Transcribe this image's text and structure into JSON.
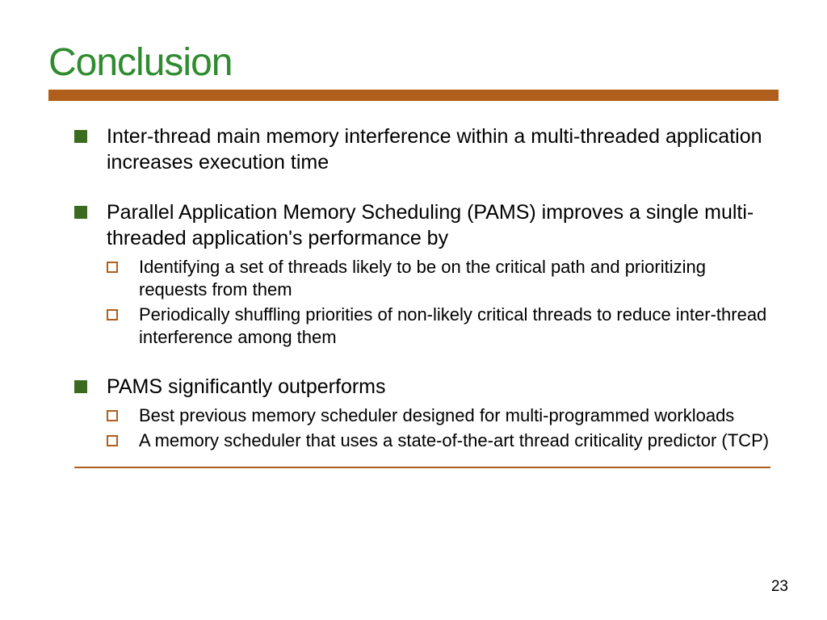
{
  "colors": {
    "title": "#2e8b2e",
    "rule": "#b05e1b",
    "bullet_fill": "#3a6b1f",
    "sub_bullet_border": "#b05e1b",
    "text": "#000000"
  },
  "title": "Conclusion",
  "bullets": {
    "b1": "Inter-thread main memory interference within a multi-threaded application increases execution time",
    "b2": "Parallel Application Memory Scheduling (PAMS) improves a single multi-threaded application's performance by",
    "b2_subs": {
      "s1": "Identifying a set of threads likely to be on the critical path and prioritizing requests from them",
      "s2": "Periodically shuffling priorities of non-likely critical threads to reduce inter-thread interference among them"
    },
    "b3": "PAMS significantly outperforms",
    "b3_subs": {
      "s1": "Best previous memory scheduler designed for multi-programmed workloads",
      "s2": "A memory scheduler that uses a state-of-the-art thread criticality predictor (TCP)"
    }
  },
  "page_number": "23"
}
